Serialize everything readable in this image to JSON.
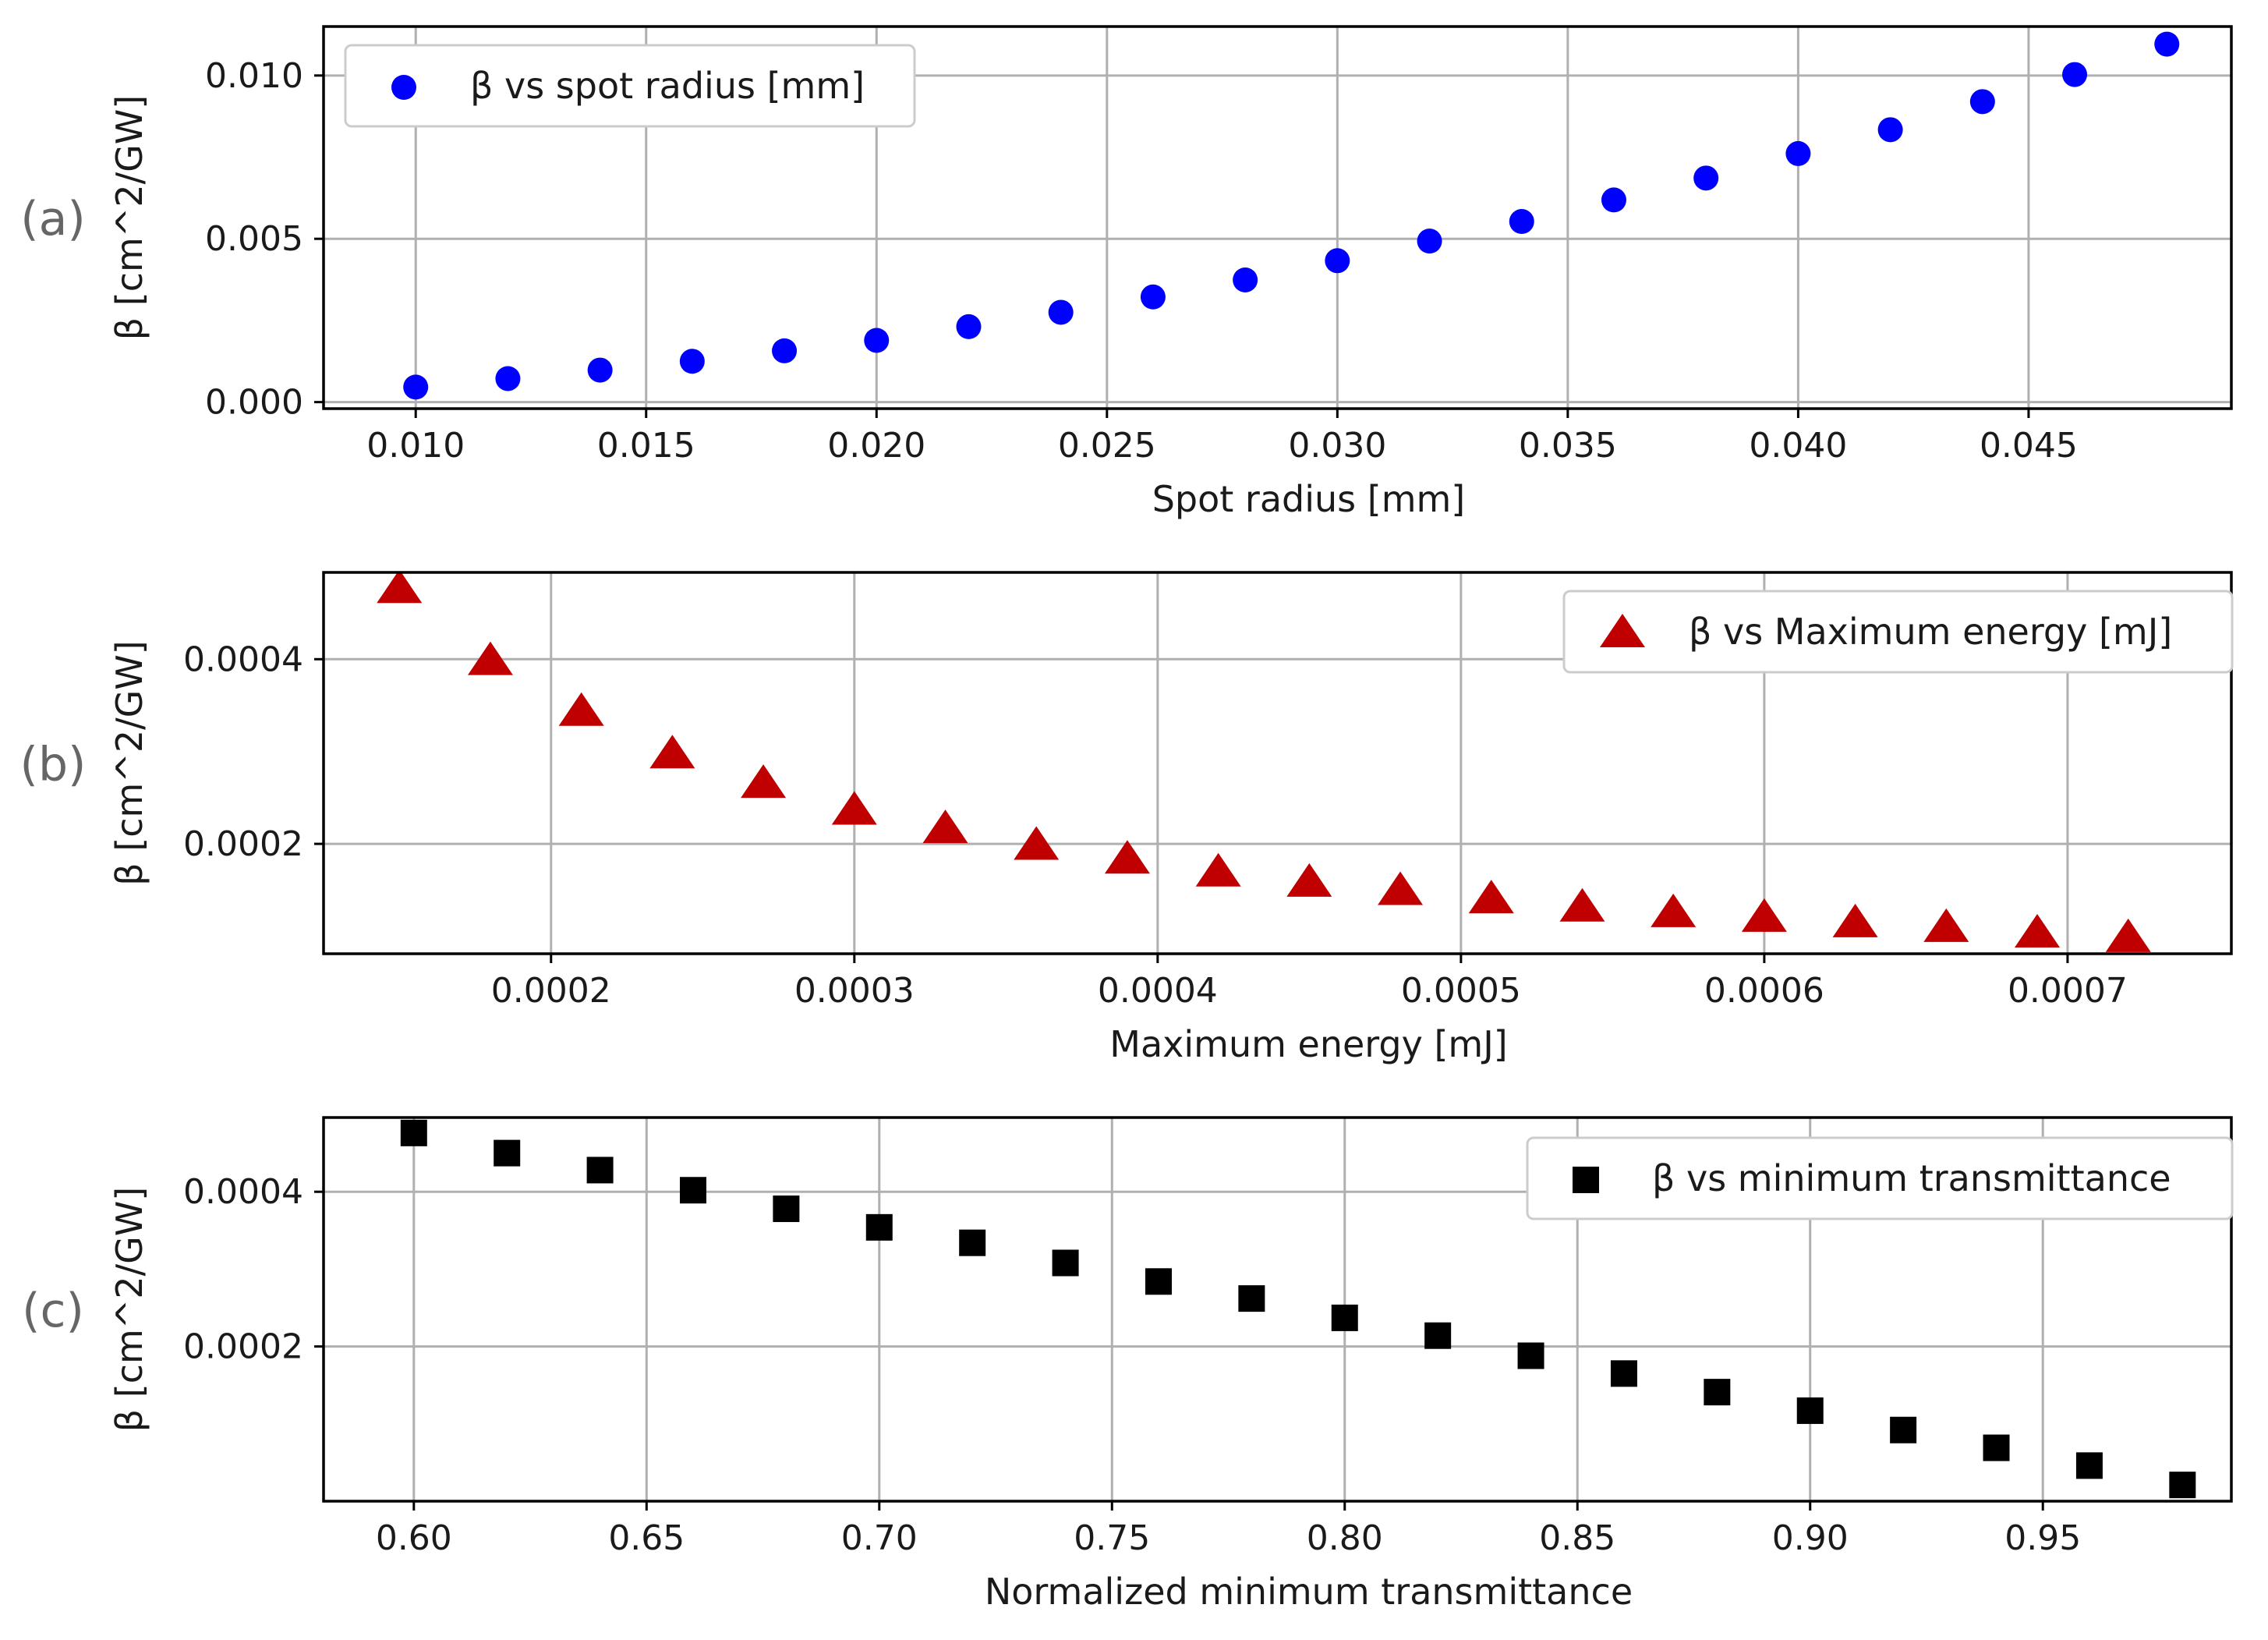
{
  "chart_data": [
    {
      "type": "scatter",
      "panel_label": "(a)",
      "xlabel": "Spot radius [mm]",
      "ylabel": "β [cm^2/GW]",
      "xlim": [
        0.008,
        0.0494
      ],
      "ylim": [
        -0.0002,
        0.0115
      ],
      "xticks": [
        0.01,
        0.015,
        0.02,
        0.025,
        0.03,
        0.035,
        0.04,
        0.045
      ],
      "xtick_labels": [
        "0.010",
        "0.015",
        "0.020",
        "0.025",
        "0.030",
        "0.035",
        "0.040",
        "0.045"
      ],
      "yticks": [
        0.0,
        0.005,
        0.01
      ],
      "ytick_labels": [
        "0.000",
        "0.005",
        "0.010"
      ],
      "legend_position": "upper-left",
      "series": [
        {
          "name": "β vs spot radius [mm]",
          "marker": "circle",
          "color": "#0000ff",
          "x": [
            0.01,
            0.012,
            0.014,
            0.016,
            0.018,
            0.02,
            0.022,
            0.024,
            0.026,
            0.028,
            0.03,
            0.032,
            0.034,
            0.036,
            0.038,
            0.04,
            0.042,
            0.044,
            0.046,
            0.048
          ],
          "y": [
            0.00046,
            0.00072,
            0.00098,
            0.00125,
            0.00157,
            0.00189,
            0.00231,
            0.00275,
            0.00322,
            0.00374,
            0.00433,
            0.00493,
            0.00553,
            0.00619,
            0.00686,
            0.00761,
            0.00834,
            0.0092,
            0.01003,
            0.01096
          ]
        }
      ]
    },
    {
      "type": "scatter",
      "panel_label": "(b)",
      "xlabel": "Maximum energy [mJ]",
      "ylabel": "β [cm^2/GW]",
      "xlim": [
        0.000125,
        0.000754
      ],
      "ylim": [
        8.1e-05,
        0.000494
      ],
      "xticks": [
        0.0002,
        0.0003,
        0.0004,
        0.0005,
        0.0006,
        0.0007
      ],
      "xtick_labels": [
        "0.0002",
        "0.0003",
        "0.0004",
        "0.0005",
        "0.0006",
        "0.0007"
      ],
      "yticks": [
        0.0002,
        0.0004
      ],
      "ytick_labels": [
        "0.0002",
        "0.0004"
      ],
      "legend_position": "upper-right",
      "series": [
        {
          "name": "β vs Maximum energy [mJ]",
          "marker": "triangle",
          "color": "#c00000",
          "x": [
            0.00015,
            0.00018,
            0.00021,
            0.00024,
            0.00027,
            0.0003,
            0.00033,
            0.00036,
            0.00039,
            0.00042,
            0.00045,
            0.00048,
            0.00051,
            0.00054,
            0.00057,
            0.0006,
            0.00063,
            0.00066,
            0.00069,
            0.00072
          ],
          "y": [
            0.000476,
            0.000398,
            0.000343,
            0.000297,
            0.000265,
            0.000236,
            0.000216,
            0.000198,
            0.000183,
            0.000169,
            0.000158,
            0.000149,
            0.00014,
            0.000131,
            0.000125,
            0.00012,
            0.000114,
            0.000109,
            0.000103,
            9.8e-05
          ]
        }
      ]
    },
    {
      "type": "scatter",
      "panel_label": "(c)",
      "xlabel": "Normalized minimum transmittance",
      "ylabel": "β [cm^2/GW]",
      "xlim": [
        0.5806,
        0.9905
      ],
      "ylim": [
        0.0,
        0.000496
      ],
      "xticks": [
        0.6,
        0.65,
        0.7,
        0.75,
        0.8,
        0.85,
        0.9,
        0.95
      ],
      "xtick_labels": [
        "0.60",
        "0.65",
        "0.70",
        "0.75",
        "0.80",
        "0.85",
        "0.90",
        "0.95"
      ],
      "yticks": [
        0.0002,
        0.0004
      ],
      "ytick_labels": [
        "0.0002",
        "0.0004"
      ],
      "legend_position": "upper-right",
      "series": [
        {
          "name": "β vs minimum transmittance",
          "marker": "square",
          "color": "#000000",
          "x": [
            0.6,
            0.62,
            0.64,
            0.66,
            0.68,
            0.7,
            0.72,
            0.74,
            0.76,
            0.78,
            0.8,
            0.82,
            0.84,
            0.86,
            0.88,
            0.9,
            0.92,
            0.94,
            0.96,
            0.98
          ],
          "y": [
            0.000476,
            0.00045,
            0.000428,
            0.000402,
            0.000378,
            0.000354,
            0.000334,
            0.000308,
            0.000284,
            0.000262,
            0.000237,
            0.000214,
            0.000188,
            0.000165,
            0.000141,
            0.000117,
            9.2e-05,
            6.9e-05,
            4.6e-05,
            2.1e-05
          ]
        }
      ]
    }
  ]
}
